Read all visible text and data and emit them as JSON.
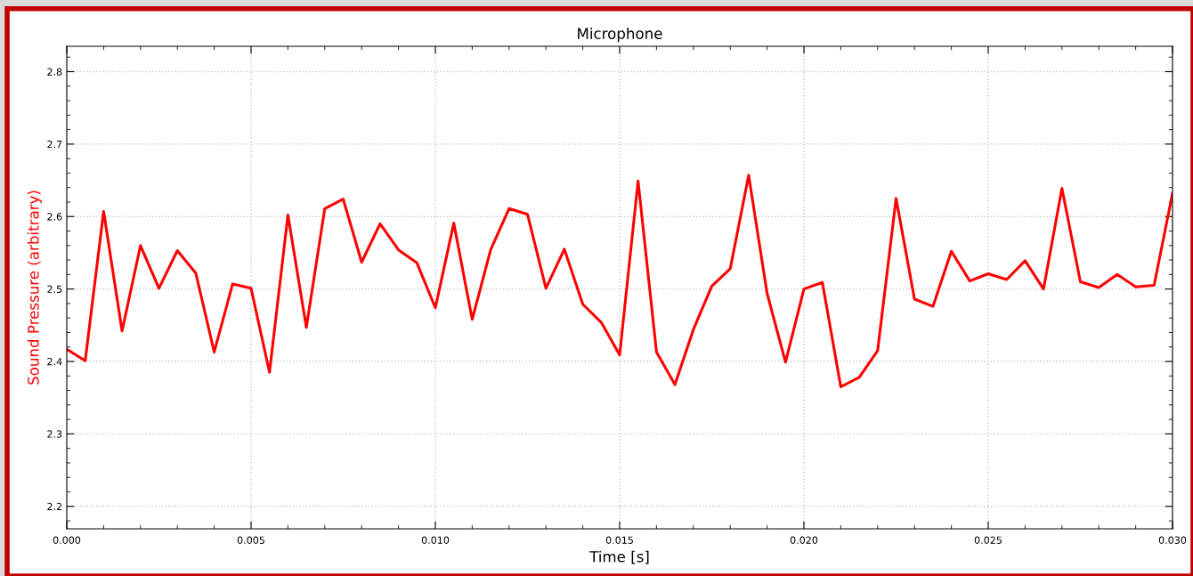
{
  "chart_data": {
    "type": "line",
    "title": "Microphone",
    "xlabel": "Time [s]",
    "ylabel": "Sound Pressure (arbitrary)",
    "x": [
      0.0,
      0.0005,
      0.001,
      0.0015,
      0.002,
      0.0025,
      0.003,
      0.0035,
      0.004,
      0.0045,
      0.005,
      0.0055,
      0.006,
      0.0065,
      0.007,
      0.0075,
      0.008,
      0.0085,
      0.009,
      0.0095,
      0.01,
      0.0105,
      0.011,
      0.0115,
      0.012,
      0.0125,
      0.013,
      0.0135,
      0.014,
      0.0145,
      0.015,
      0.0155,
      0.016,
      0.0165,
      0.017,
      0.0175,
      0.018,
      0.0185,
      0.019,
      0.0195,
      0.02,
      0.0205,
      0.021,
      0.0215,
      0.022,
      0.0225,
      0.023,
      0.0235,
      0.024,
      0.0245,
      0.025,
      0.0255,
      0.026,
      0.0265,
      0.027,
      0.0275,
      0.028,
      0.0285,
      0.029,
      0.0295,
      0.03
    ],
    "series": [
      {
        "color": "#ff0000",
        "values": [
          2.417,
          2.401,
          2.607,
          2.442,
          2.56,
          2.501,
          2.553,
          2.522,
          2.413,
          2.507,
          2.501,
          2.385,
          2.602,
          2.447,
          2.611,
          2.624,
          2.537,
          2.59,
          2.554,
          2.536,
          2.474,
          2.591,
          2.458,
          2.554,
          2.611,
          2.603,
          2.501,
          2.555,
          2.479,
          2.454,
          2.409,
          2.649,
          2.413,
          2.368,
          2.444,
          2.504,
          2.528,
          2.657,
          2.494,
          2.399,
          2.5,
          2.509,
          2.365,
          2.378,
          2.415,
          2.625,
          2.486,
          2.476,
          2.552,
          2.511,
          2.521,
          2.513,
          2.539,
          2.5,
          2.639,
          2.51,
          2.502,
          2.52,
          2.503,
          2.505,
          2.632
        ]
      }
    ],
    "xlim": [
      0,
      0.03
    ],
    "ylim": [
      2.169,
      2.835
    ],
    "xticks": [
      {
        "value": 0,
        "label": "0.000"
      },
      {
        "value": 0.005,
        "label": "0.005"
      },
      {
        "value": 0.01,
        "label": "0.010"
      },
      {
        "value": 0.015,
        "label": "0.015"
      },
      {
        "value": 0.02,
        "label": "0.020"
      },
      {
        "value": 0.025,
        "label": "0.025"
      },
      {
        "value": 0.03,
        "label": "0.030"
      }
    ],
    "yticks": [
      2.2,
      2.3,
      2.4,
      2.5,
      2.6,
      2.7,
      2.8
    ],
    "grid": true,
    "marker": "none",
    "line_style": "solid"
  }
}
